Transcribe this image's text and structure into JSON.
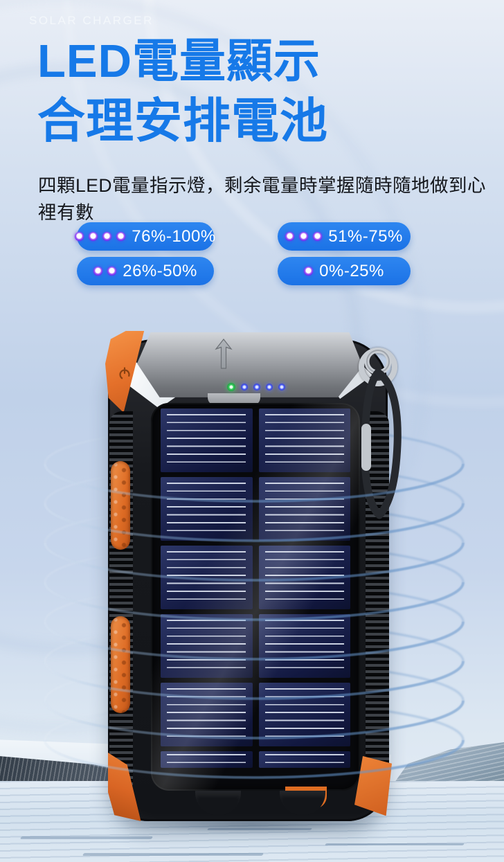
{
  "page": {
    "eyebrow": "SOLAR CHARGER",
    "title_line1": "LED電量顯示",
    "title_line2": "合理安排電池",
    "description": "四顆LED電量指示燈，剩余電量時掌握隨時隨地做到心裡有數"
  },
  "battery_levels": [
    {
      "label": "76%-100%",
      "leds": 4
    },
    {
      "label": "51%-75%",
      "leds": 3
    },
    {
      "label": "26%-50%",
      "leds": 2
    },
    {
      "label": "0%-25%",
      "leds": 1
    }
  ],
  "device": {
    "status_leds": {
      "green": 1,
      "blue": 4
    },
    "solar_columns": 2,
    "solar_rows": 5
  },
  "icons": {
    "power": "⏻",
    "arrow_up": "↑",
    "led_dot": "●"
  },
  "colors": {
    "title_blue": "#1679e8",
    "pill_blue": "#1f79e8",
    "led_purple": "#6d21ee",
    "status_green": "#3ed162",
    "status_blue": "#5a6cf5",
    "accent_orange": "#e4702a",
    "ring_blue": "#7aa0cf",
    "background_blue": "#c0d1e9"
  }
}
